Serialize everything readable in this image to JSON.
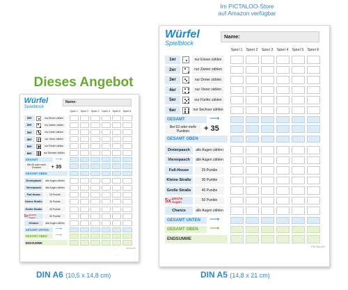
{
  "store_line1": "Im PICTALOO-Store",
  "store_line2": "auf Amazon verfügbar",
  "offer": "Dieses Angebot",
  "title": "Würfel",
  "subtitle": "Spielblock",
  "name_label": "Name:",
  "games": [
    "Spiel 1",
    "Spiel 2",
    "Spiel 3",
    "Spiel 4",
    "Spiel 5",
    "Spiel 6"
  ],
  "upper": [
    {
      "label": "1er",
      "desc": "nur Einser zählen",
      "pips": 1
    },
    {
      "label": "2er",
      "desc": "nur Zweier zählen",
      "pips": 2
    },
    {
      "label": "3er",
      "desc": "nur Dreier zählen",
      "pips": 3
    },
    {
      "label": "4er",
      "desc": "nur Vierer zählen",
      "pips": 4
    },
    {
      "label": "5er",
      "desc": "nur Fünfer zählen",
      "pips": 5
    },
    {
      "label": "6er",
      "desc": "nur Sechser zählen",
      "pips": 6
    }
  ],
  "gesamt": "GESAMT",
  "bonus_label": "Bei 63 oder mehr Punkten",
  "bonus_value": "+ 35",
  "gesamt_oben": "GESAMT OBEN",
  "lower": [
    {
      "label": "Dreierpasch",
      "desc": "alle Augen zählen"
    },
    {
      "label": "Viererpasch",
      "desc": "alle Augen zählen"
    },
    {
      "label": "Full-House",
      "desc": "25 Punkte"
    },
    {
      "label": "Kleine Straße",
      "desc": "30 Punkte"
    },
    {
      "label": "Große Straße",
      "desc": "40 Punkte"
    },
    {
      "label": "5x gleiche Augen",
      "desc": "50 Punkte"
    },
    {
      "label": "Chance",
      "desc": "alle Augen zählen"
    }
  ],
  "gesamt_unten": "GESAMT UNTEN",
  "endsumme": "ENDSUMME",
  "brand": "PICTALOO",
  "caption_a6": "DIN A6",
  "dim_a6": "(10,5 x 14,8 cm)",
  "caption_a5": "DIN A5",
  "dim_a5": "(14,8 x 21 cm)",
  "colors": {
    "blue": "#1f87c7",
    "green": "#6aa834",
    "red": "#d93030"
  }
}
